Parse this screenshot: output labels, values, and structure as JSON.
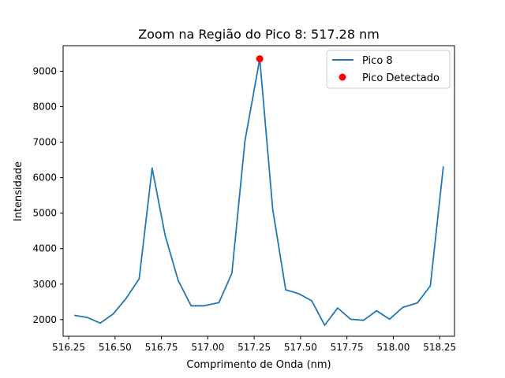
{
  "chart_data": {
    "type": "line",
    "title": "Zoom na Região do Pico 8: 517.28 nm",
    "xlabel": "Comprimento de Onda (nm)",
    "ylabel": "Intensidade",
    "xlim": [
      516.22,
      518.33
    ],
    "ylim": [
      1530,
      9720
    ],
    "xticks": [
      516.25,
      516.5,
      516.75,
      517.0,
      517.25,
      517.5,
      517.75,
      518.0,
      518.25
    ],
    "xtick_labels": [
      "516.25",
      "516.50",
      "516.75",
      "517.00",
      "517.25",
      "517.50",
      "517.75",
      "518.00",
      "518.25"
    ],
    "yticks": [
      2000,
      3000,
      4000,
      5000,
      6000,
      7000,
      8000,
      9000
    ],
    "ytick_labels": [
      "2000",
      "3000",
      "4000",
      "5000",
      "6000",
      "7000",
      "8000",
      "9000"
    ],
    "grid": false,
    "legend_position": "top-right",
    "series": [
      {
        "name": "Pico 8",
        "color": "#1f77b4",
        "x": [
          516.28,
          516.35,
          516.42,
          516.49,
          516.56,
          516.63,
          516.7,
          516.77,
          516.84,
          516.91,
          516.98,
          517.06,
          517.13,
          517.2,
          517.28,
          517.35,
          517.42,
          517.49,
          517.56,
          517.63,
          517.7,
          517.77,
          517.84,
          517.91,
          517.98,
          518.05,
          518.13,
          518.2,
          518.27
        ],
        "y": [
          2120,
          2060,
          1900,
          2160,
          2600,
          3150,
          6270,
          4370,
          3110,
          2390,
          2390,
          2480,
          3310,
          7030,
          9350,
          5110,
          2840,
          2730,
          2530,
          1840,
          2330,
          2010,
          1980,
          2250,
          2010,
          2340,
          2470,
          2950,
          6320
        ]
      }
    ],
    "peak": {
      "name": "Pico Detectado",
      "color": "#ff0000",
      "x": 517.28,
      "y": 9350
    }
  }
}
